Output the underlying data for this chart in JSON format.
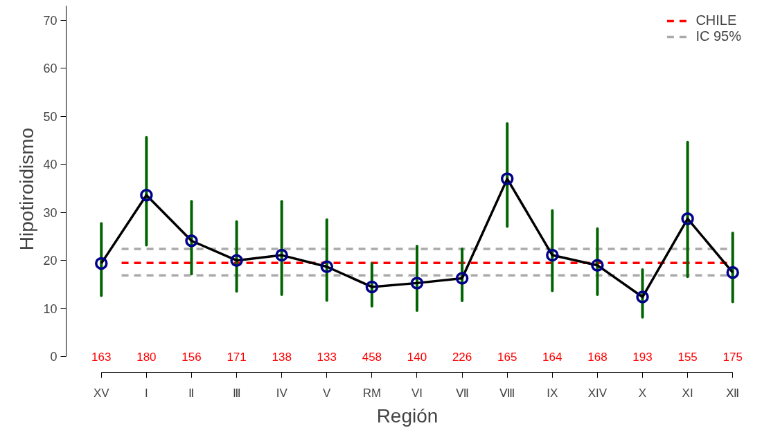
{
  "chart_data": {
    "type": "line",
    "xlabel": "Región",
    "ylabel": "Hipotiroidismo",
    "categories": [
      "XV",
      "I",
      "Ⅱ",
      "Ⅲ",
      "IV",
      "V",
      "RM",
      "VI",
      "Ⅶ",
      "Ⅷ",
      "IX",
      "XIV",
      "X",
      "XI",
      "Ⅻ"
    ],
    "series": [
      {
        "color": "#000000",
        "values": [
          19.4,
          33.6,
          24.1,
          20.0,
          21.1,
          18.7,
          14.5,
          15.3,
          16.3,
          37.0,
          21.1,
          19.0,
          12.4,
          28.7,
          17.5
        ],
        "errors": [
          [
            12.7,
            27.7
          ],
          [
            23.2,
            45.6
          ],
          [
            17.2,
            32.3
          ],
          [
            13.6,
            28.1
          ],
          [
            12.9,
            32.3
          ],
          [
            11.7,
            28.5
          ],
          [
            10.5,
            19.4
          ],
          [
            9.6,
            23.0
          ],
          [
            11.6,
            22.4
          ],
          [
            27.1,
            48.5
          ],
          [
            13.7,
            30.4
          ],
          [
            12.9,
            26.6
          ],
          [
            8.2,
            18.1
          ],
          [
            16.6,
            44.6
          ],
          [
            11.4,
            25.7
          ]
        ]
      }
    ],
    "marker": "circle",
    "ylim": [
      0,
      73
    ],
    "yticks": [
      0,
      10,
      20,
      30,
      40,
      50,
      60,
      70
    ],
    "grid": false,
    "legend": "top right",
    "ref_lines": [
      {
        "axis": "y",
        "value": 19.5,
        "label": "CHILE",
        "color": "#ff0000",
        "line_style": "dashed"
      },
      {
        "axis": "y",
        "value": 22.4,
        "label": "IC 95%",
        "color": "#aaaaaa",
        "line_style": "dashed"
      },
      {
        "axis": "y",
        "value": 16.9,
        "label": null,
        "color": "#aaaaaa",
        "line_style": "dashed"
      }
    ],
    "annotations": [
      "163",
      "180",
      "156",
      "171",
      "138",
      "133",
      "458",
      "140",
      "226",
      "165",
      "164",
      "168",
      "193",
      "155",
      "175"
    ]
  }
}
